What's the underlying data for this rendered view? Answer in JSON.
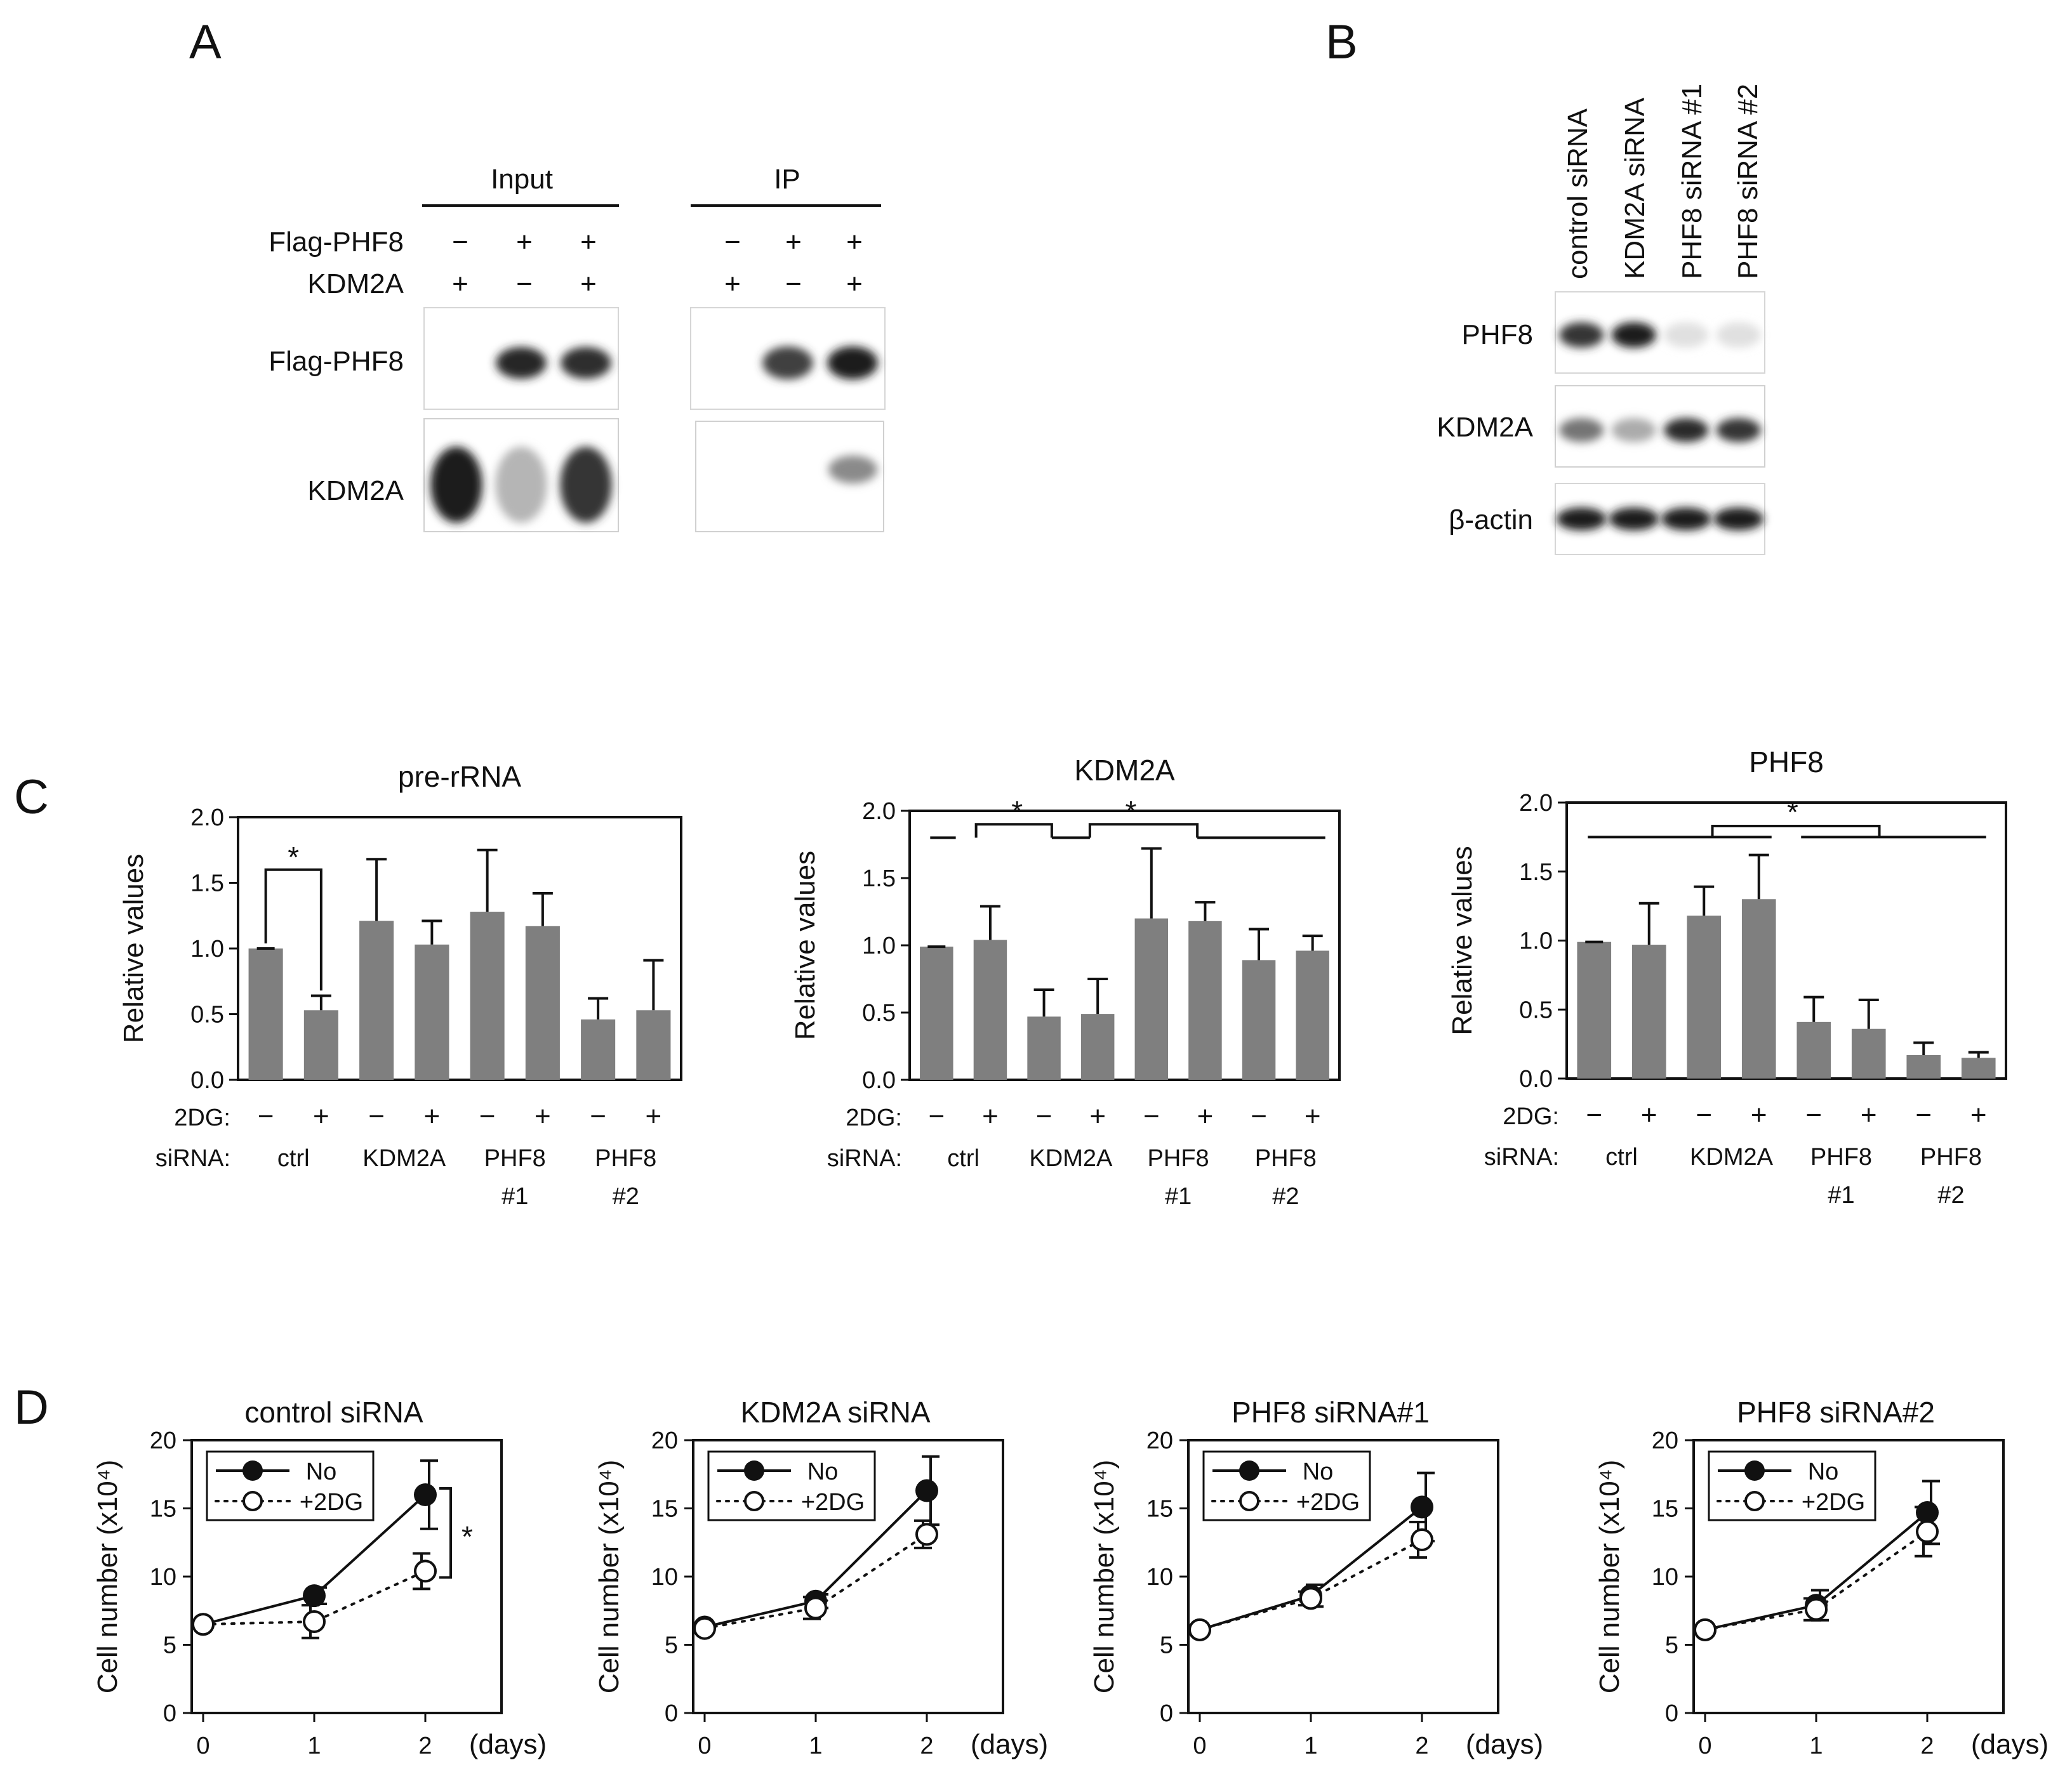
{
  "panel_labels": [
    "A",
    "B",
    "C",
    "D"
  ],
  "panel_a": {
    "group_labels": [
      "Input",
      "IP"
    ],
    "row_labels": [
      "Flag-PHF8",
      "KDM2A"
    ],
    "lane_signs": {
      "input": {
        "Flag-PHF8": [
          "−",
          "+",
          "+"
        ],
        "KDM2A": [
          "+",
          "−",
          "+"
        ]
      },
      "ip": {
        "Flag-PHF8": [
          "−",
          "+",
          "+"
        ],
        "KDM2A": [
          "+",
          "−",
          "+"
        ]
      }
    },
    "blot_labels": [
      "Flag-PHF8",
      "KDM2A"
    ],
    "band_intensity": {
      "input_flag": [
        0.0,
        0.92,
        0.88
      ],
      "input_kdm2a": [
        0.95,
        0.25,
        0.85
      ],
      "ip_flag": [
        0.0,
        0.8,
        0.97
      ],
      "ip_kdm2a": [
        0.0,
        0.0,
        0.45
      ]
    }
  },
  "panel_b": {
    "lane_labels": [
      "control siRNA",
      "KDM2A siRNA",
      "PHF8 siRNA #1",
      "PHF8 siRNA #2"
    ],
    "blot_labels": [
      "PHF8",
      "KDM2A",
      "β-actin"
    ],
    "band_intensity": {
      "PHF8": [
        0.85,
        0.97,
        0.05,
        0.05
      ],
      "KDM2A": [
        0.55,
        0.3,
        0.9,
        0.85
      ],
      "beta_actin": [
        0.97,
        0.97,
        0.97,
        0.97
      ]
    }
  },
  "panel_c": {
    "row_labels": {
      "treatment": "2DG:",
      "group": "siRNA:"
    },
    "treatment_signs": [
      "−",
      "+",
      "−",
      "+",
      "−",
      "+",
      "−",
      "+"
    ],
    "group_labels": [
      "ctrl",
      "KDM2A",
      "PHF8\n#1",
      "PHF8\n#2"
    ],
    "significance_marker": "*"
  },
  "panel_d": {
    "legend": [
      {
        "label": "No",
        "marker": "filled-circle",
        "line": "solid"
      },
      {
        "label": "+2DG",
        "marker": "open-circle",
        "line": "dotted"
      }
    ],
    "xunit": "(days)",
    "significance_marker": "*"
  },
  "chart_data": [
    {
      "id": "c1",
      "type": "bar",
      "title": "pre-rRNA",
      "ylabel": "Relative values",
      "ylim": [
        0,
        2.0
      ],
      "yticks": [
        "0.0",
        "0.5",
        "1.0",
        "1.5",
        "2.0"
      ],
      "categories": [
        "ctrl −",
        "ctrl +",
        "KDM2A −",
        "KDM2A +",
        "PHF8 #1 −",
        "PHF8 #1 +",
        "PHF8 #2 −",
        "PHF8 #2 +"
      ],
      "values": [
        1.0,
        0.53,
        1.21,
        1.03,
        1.28,
        1.17,
        0.46,
        0.53
      ],
      "errors": [
        0.0,
        0.11,
        0.47,
        0.18,
        0.47,
        0.25,
        0.16,
        0.38
      ],
      "significance": [
        {
          "from": 0,
          "to": 1,
          "label": "*"
        }
      ]
    },
    {
      "id": "c2",
      "type": "bar",
      "title": "KDM2A",
      "ylabel": "Relative values",
      "ylim": [
        0,
        2.0
      ],
      "yticks": [
        "0.0",
        "0.5",
        "1.0",
        "1.5",
        "2.0"
      ],
      "categories": [
        "ctrl −",
        "ctrl +",
        "KDM2A −",
        "KDM2A +",
        "PHF8 #1 −",
        "PHF8 #1 +",
        "PHF8 #2 −",
        "PHF8 #2 +"
      ],
      "values": [
        0.99,
        1.04,
        0.47,
        0.49,
        1.2,
        1.18,
        0.89,
        0.96
      ],
      "errors": [
        0.0,
        0.25,
        0.2,
        0.26,
        0.52,
        0.14,
        0.23,
        0.11
      ],
      "significance": [
        {
          "label": "*"
        },
        {
          "label": "*"
        }
      ]
    },
    {
      "id": "c3",
      "type": "bar",
      "title": "PHF8",
      "ylabel": "Relative values",
      "ylim": [
        0,
        2.0
      ],
      "yticks": [
        "0.0",
        "0.5",
        "1.0",
        "1.5",
        "2.0"
      ],
      "categories": [
        "ctrl −",
        "ctrl +",
        "KDM2A −",
        "KDM2A +",
        "PHF8 #1 −",
        "PHF8 #1 +",
        "PHF8 #2 −",
        "PHF8 #2 +"
      ],
      "values": [
        0.99,
        0.97,
        1.18,
        1.3,
        0.41,
        0.36,
        0.17,
        0.15
      ],
      "errors": [
        0.0,
        0.3,
        0.21,
        0.32,
        0.18,
        0.21,
        0.09,
        0.04
      ],
      "significance": [
        {
          "label": "*"
        }
      ]
    },
    {
      "id": "d1",
      "type": "line",
      "title": "control siRNA",
      "ylabel": "Cell number (x10⁴)",
      "xlabel": "(days)",
      "ylim": [
        0,
        20
      ],
      "yticks": [
        "0",
        "5",
        "10",
        "15",
        "20"
      ],
      "x": [
        0,
        1,
        2
      ],
      "xticks": [
        "0",
        "1",
        "2"
      ],
      "series": [
        {
          "name": "No",
          "values": [
            6.5,
            8.6,
            16.0
          ],
          "errors": [
            0.3,
            0.6,
            2.5
          ]
        },
        {
          "name": "+2DG",
          "values": [
            6.5,
            6.7,
            10.4
          ],
          "errors": [
            0.3,
            1.2,
            1.3
          ]
        }
      ],
      "significance": "*"
    },
    {
      "id": "d2",
      "type": "line",
      "title": "KDM2A siRNA",
      "ylabel": "Cell number (x10⁴)",
      "xlabel": "(days)",
      "ylim": [
        0,
        20
      ],
      "yticks": [
        "0",
        "5",
        "10",
        "15",
        "20"
      ],
      "x": [
        0,
        1,
        2
      ],
      "xticks": [
        "0",
        "1",
        "2"
      ],
      "series": [
        {
          "name": "No",
          "values": [
            6.3,
            8.2,
            16.3
          ],
          "errors": [
            0.3,
            0.5,
            2.5
          ]
        },
        {
          "name": "+2DG",
          "values": [
            6.2,
            7.7,
            13.1
          ],
          "errors": [
            0.3,
            0.8,
            1.0
          ]
        }
      ]
    },
    {
      "id": "d3",
      "type": "line",
      "title": "PHF8 siRNA#1",
      "ylabel": "Cell number (x10⁴)",
      "xlabel": "(days)",
      "ylim": [
        0,
        20
      ],
      "yticks": [
        "0",
        "5",
        "10",
        "15",
        "20"
      ],
      "x": [
        0,
        1,
        2
      ],
      "xticks": [
        "0",
        "1",
        "2"
      ],
      "series": [
        {
          "name": "No",
          "values": [
            6.1,
            8.6,
            15.1
          ],
          "errors": [
            0.3,
            0.8,
            2.5
          ]
        },
        {
          "name": "+2DG",
          "values": [
            6.1,
            8.4,
            12.7
          ],
          "errors": [
            0.3,
            0.5,
            1.3
          ]
        }
      ]
    },
    {
      "id": "d4",
      "type": "line",
      "title": "PHF8 siRNA#2",
      "ylabel": "Cell number (x10⁴)",
      "xlabel": "(days)",
      "ylim": [
        0,
        20
      ],
      "yticks": [
        "0",
        "5",
        "10",
        "15",
        "20"
      ],
      "x": [
        0,
        1,
        2
      ],
      "xticks": [
        "0",
        "1",
        "2"
      ],
      "series": [
        {
          "name": "No",
          "values": [
            6.1,
            7.9,
            14.7
          ],
          "errors": [
            0.3,
            1.1,
            2.3
          ]
        },
        {
          "name": "+2DG",
          "values": [
            6.1,
            7.6,
            13.3
          ],
          "errors": [
            0.3,
            0.8,
            1.8
          ]
        }
      ]
    }
  ]
}
